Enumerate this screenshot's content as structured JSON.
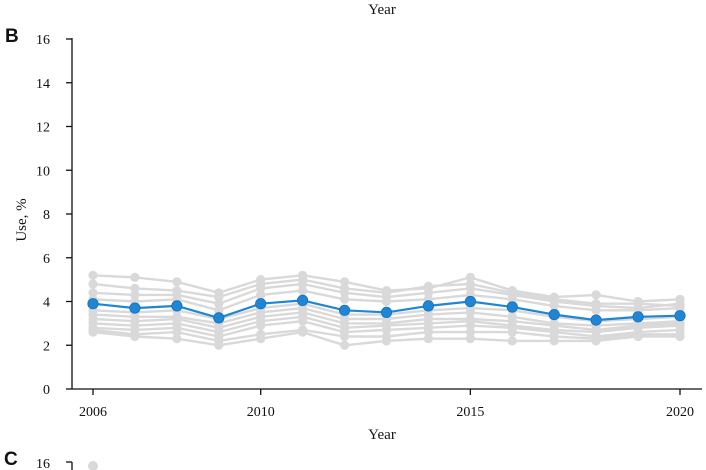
{
  "top_partial": {
    "xlabel": "Year"
  },
  "panel_B": {
    "letter": "B"
  },
  "panel_C": {
    "letter": "C",
    "first_tick": "16"
  },
  "chart_data": {
    "type": "line",
    "title": "",
    "xlabel": "Year",
    "ylabel": "Use, %",
    "xlim": [
      2006,
      2020
    ],
    "ylim": [
      0,
      16
    ],
    "x_ticks": [
      2006,
      2010,
      2015,
      2020
    ],
    "y_ticks": [
      0,
      2,
      4,
      6,
      8,
      10,
      12,
      14,
      16
    ],
    "grid": false,
    "x": [
      2006,
      2007,
      2008,
      2009,
      2010,
      2011,
      2012,
      2013,
      2014,
      2015,
      2016,
      2017,
      2018,
      2019,
      2020
    ],
    "colors": {
      "highlight": "#1f86d6",
      "background": "#d9d9d9",
      "axis": "#111111"
    },
    "series": [
      {
        "role": "background",
        "values": [
          5.2,
          5.1,
          4.9,
          4.4,
          5.0,
          5.2,
          4.9,
          4.5,
          4.6,
          5.1,
          4.5,
          4.2,
          4.3,
          4.0,
          4.1
        ]
      },
      {
        "role": "background",
        "values": [
          4.8,
          4.6,
          4.5,
          4.2,
          4.8,
          5.0,
          4.6,
          4.4,
          4.7,
          4.8,
          4.4,
          4.1,
          3.9,
          3.9,
          3.8
        ]
      },
      {
        "role": "background",
        "values": [
          4.4,
          4.3,
          4.3,
          3.9,
          4.6,
          4.8,
          4.4,
          4.2,
          4.4,
          4.6,
          4.3,
          4.0,
          3.8,
          3.7,
          3.9
        ]
      },
      {
        "role": "background",
        "values": [
          4.1,
          4.0,
          4.1,
          3.6,
          4.3,
          4.5,
          4.1,
          4.0,
          4.1,
          4.3,
          4.1,
          3.8,
          3.6,
          3.6,
          3.7
        ]
      },
      {
        "role": "background",
        "values": [
          3.6,
          3.5,
          3.6,
          3.2,
          3.7,
          3.9,
          3.4,
          3.4,
          3.6,
          3.7,
          3.6,
          3.3,
          3.1,
          3.2,
          3.3
        ]
      },
      {
        "role": "background",
        "values": [
          3.4,
          3.3,
          3.3,
          3.0,
          3.5,
          3.7,
          3.2,
          3.2,
          3.4,
          3.5,
          3.3,
          3.0,
          2.9,
          3.0,
          3.1
        ]
      },
      {
        "role": "background",
        "values": [
          3.2,
          3.1,
          3.2,
          2.8,
          3.3,
          3.5,
          3.0,
          3.0,
          3.2,
          3.2,
          3.1,
          2.9,
          2.7,
          2.9,
          3.0
        ]
      },
      {
        "role": "background",
        "values": [
          3.0,
          2.9,
          3.0,
          2.6,
          3.1,
          3.3,
          2.8,
          2.9,
          3.0,
          3.1,
          2.9,
          2.7,
          2.6,
          2.8,
          2.9
        ]
      },
      {
        "role": "background",
        "values": [
          2.8,
          2.7,
          2.8,
          2.4,
          2.9,
          3.1,
          2.6,
          2.7,
          2.8,
          2.9,
          2.8,
          2.6,
          2.4,
          2.6,
          2.7
        ]
      },
      {
        "role": "background",
        "values": [
          2.7,
          2.5,
          2.6,
          2.2,
          2.5,
          2.7,
          2.4,
          2.4,
          2.6,
          2.6,
          2.6,
          2.4,
          2.3,
          2.5,
          2.5
        ]
      },
      {
        "role": "background",
        "values": [
          2.6,
          2.4,
          2.3,
          2.0,
          2.3,
          2.6,
          2.0,
          2.2,
          2.3,
          2.3,
          2.2,
          2.2,
          2.2,
          2.4,
          2.4
        ]
      },
      {
        "role": "highlight",
        "values": [
          3.9,
          3.7,
          3.8,
          3.25,
          3.9,
          4.05,
          3.6,
          3.5,
          3.8,
          4.0,
          3.75,
          3.4,
          3.15,
          3.3,
          3.35
        ]
      }
    ]
  }
}
